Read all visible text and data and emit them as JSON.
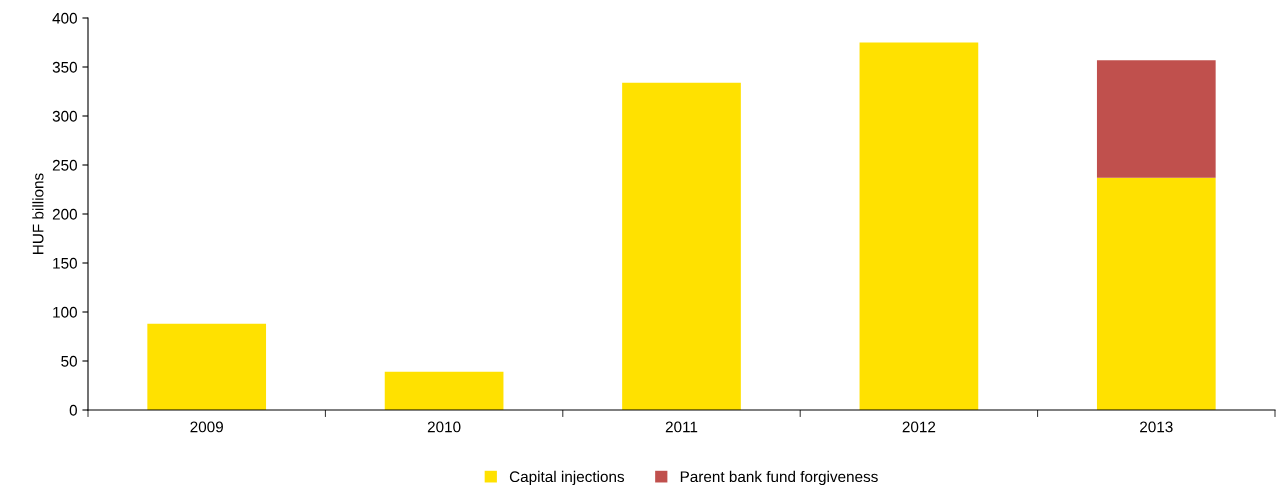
{
  "chart_data": {
    "type": "bar",
    "stacked": true,
    "ylabel": "HUF billions",
    "categories": [
      "2009",
      "2010",
      "2011",
      "2012",
      "2013"
    ],
    "series": [
      {
        "name": "Capital injections",
        "color": "#ffe100",
        "values": [
          88,
          39,
          334,
          375,
          237
        ]
      },
      {
        "name": "Parent bank fund forgiveness",
        "color": "#c0504d",
        "values": [
          0,
          0,
          0,
          0,
          120
        ]
      }
    ],
    "ylim": [
      0,
      400
    ],
    "yticks": [
      0,
      50,
      100,
      150,
      200,
      250,
      300,
      350,
      400
    ],
    "grid": false,
    "legend": "bottom"
  }
}
